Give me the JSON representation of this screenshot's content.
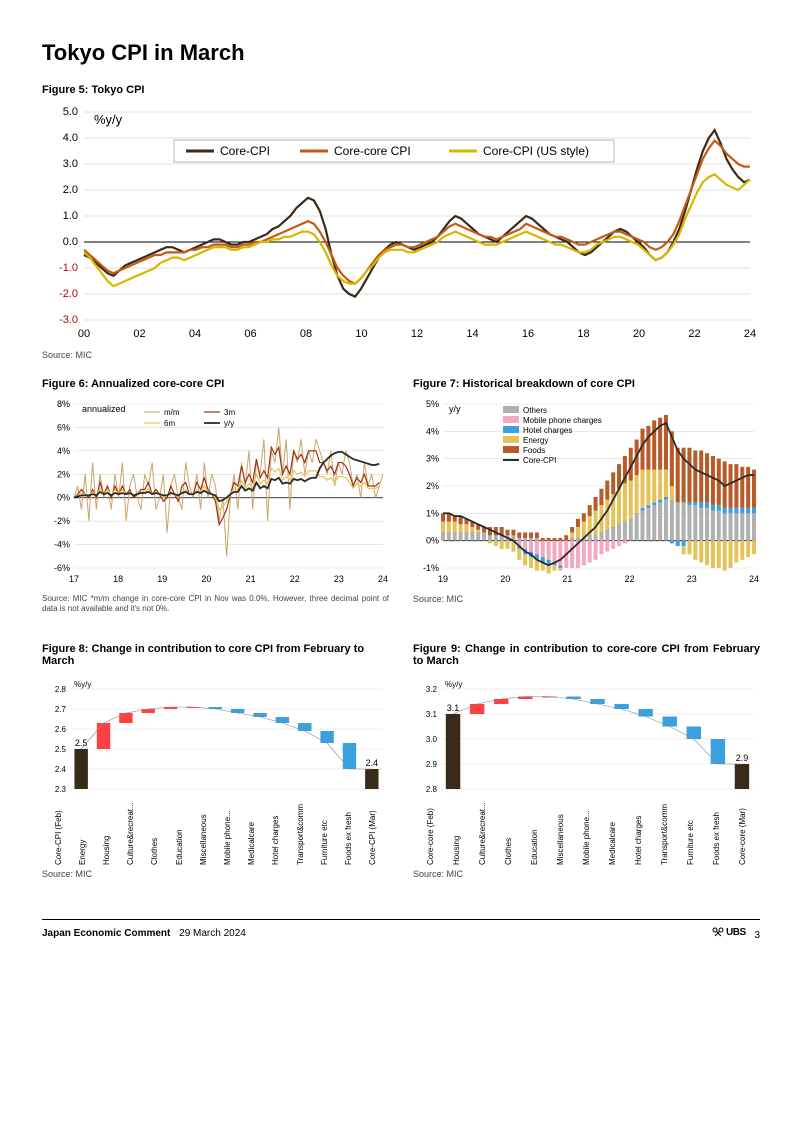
{
  "page": {
    "title": "Tokyo CPI in March",
    "footer_series": "Japan Economic Comment",
    "footer_date": "29 March 2024",
    "brand": "UBS",
    "page_number": "3"
  },
  "fig5": {
    "title": "Figure 5: Tokyo CPI",
    "ylabel": "%y/y",
    "source": "Source: MIC",
    "type": "line",
    "x_years": [
      0,
      2,
      4,
      6,
      8,
      10,
      12,
      14,
      16,
      18,
      20,
      22,
      24
    ],
    "x_labels": [
      "00",
      "02",
      "04",
      "06",
      "08",
      "10",
      "12",
      "14",
      "16",
      "18",
      "20",
      "22",
      "24"
    ],
    "ylim": [
      -3.0,
      5.0
    ],
    "ytick_step": 1.0,
    "neg_color": "#c00000",
    "pos_color": "#000000",
    "grid_color": "#d9d9d9",
    "series": [
      {
        "name": "Core-CPI",
        "color": "#3a2a1a",
        "width": 2.2,
        "vals": [
          -0.5,
          -0.6,
          -0.8,
          -1.0,
          -1.2,
          -1.3,
          -1.1,
          -0.9,
          -0.8,
          -0.7,
          -0.6,
          -0.5,
          -0.4,
          -0.3,
          -0.2,
          -0.2,
          -0.3,
          -0.4,
          -0.3,
          -0.2,
          -0.1,
          0.0,
          0.1,
          0.1,
          0.0,
          -0.1,
          -0.1,
          0.0,
          0.0,
          0.1,
          0.2,
          0.3,
          0.5,
          0.6,
          0.8,
          1.0,
          1.3,
          1.5,
          1.7,
          1.6,
          1.2,
          0.5,
          -0.5,
          -1.3,
          -1.8,
          -2.0,
          -2.1,
          -1.8,
          -1.4,
          -1.0,
          -0.6,
          -0.3,
          -0.1,
          0.0,
          -0.1,
          -0.2,
          -0.3,
          -0.2,
          -0.1,
          0.0,
          0.2,
          0.5,
          0.8,
          1.0,
          0.9,
          0.7,
          0.5,
          0.3,
          0.2,
          0.1,
          0.0,
          0.2,
          0.4,
          0.6,
          0.8,
          1.0,
          0.9,
          0.7,
          0.5,
          0.3,
          0.2,
          0.1,
          0.0,
          -0.2,
          -0.4,
          -0.5,
          -0.4,
          -0.2,
          0.0,
          0.2,
          0.4,
          0.5,
          0.4,
          0.2,
          0.0,
          -0.2,
          -0.5,
          -0.7,
          -0.6,
          -0.4,
          0.0,
          0.5,
          1.2,
          2.0,
          2.8,
          3.5,
          4.0,
          4.3,
          3.8,
          3.2,
          2.8,
          2.5,
          2.3,
          2.4
        ]
      },
      {
        "name": "Core-core CPI",
        "color": "#c55a11",
        "width": 2.2,
        "vals": [
          -0.3,
          -0.5,
          -0.7,
          -0.9,
          -1.1,
          -1.2,
          -1.1,
          -1.0,
          -0.9,
          -0.8,
          -0.7,
          -0.6,
          -0.5,
          -0.5,
          -0.4,
          -0.4,
          -0.4,
          -0.4,
          -0.3,
          -0.3,
          -0.2,
          -0.2,
          -0.1,
          -0.1,
          -0.1,
          -0.2,
          -0.2,
          -0.1,
          -0.1,
          0.0,
          0.0,
          0.1,
          0.2,
          0.3,
          0.4,
          0.5,
          0.6,
          0.7,
          0.8,
          0.7,
          0.4,
          0.0,
          -0.5,
          -1.0,
          -1.3,
          -1.5,
          -1.6,
          -1.4,
          -1.1,
          -0.8,
          -0.5,
          -0.3,
          -0.2,
          -0.1,
          -0.1,
          -0.2,
          -0.2,
          -0.1,
          0.0,
          0.1,
          0.2,
          0.4,
          0.6,
          0.7,
          0.6,
          0.5,
          0.4,
          0.3,
          0.2,
          0.2,
          0.1,
          0.2,
          0.3,
          0.4,
          0.5,
          0.7,
          0.6,
          0.5,
          0.4,
          0.3,
          0.2,
          0.2,
          0.1,
          0.0,
          -0.1,
          -0.1,
          0.0,
          0.1,
          0.2,
          0.3,
          0.4,
          0.4,
          0.3,
          0.2,
          0.1,
          0.0,
          -0.2,
          -0.3,
          -0.2,
          0.0,
          0.3,
          0.8,
          1.4,
          2.0,
          2.6,
          3.2,
          3.6,
          3.9,
          3.7,
          3.4,
          3.2,
          3.0,
          2.9,
          2.9
        ]
      },
      {
        "name": "Core-CPI (US style)",
        "color": "#d4b800",
        "width": 2.2,
        "vals": [
          -0.4,
          -0.6,
          -0.9,
          -1.2,
          -1.5,
          -1.7,
          -1.6,
          -1.5,
          -1.4,
          -1.3,
          -1.2,
          -1.1,
          -1.0,
          -0.8,
          -0.7,
          -0.6,
          -0.6,
          -0.7,
          -0.6,
          -0.5,
          -0.4,
          -0.3,
          -0.2,
          -0.2,
          -0.2,
          -0.3,
          -0.3,
          -0.2,
          -0.2,
          -0.1,
          0.0,
          0.0,
          0.1,
          0.1,
          0.2,
          0.2,
          0.3,
          0.4,
          0.4,
          0.3,
          0.0,
          -0.4,
          -0.9,
          -1.3,
          -1.5,
          -1.6,
          -1.6,
          -1.4,
          -1.1,
          -0.9,
          -0.6,
          -0.4,
          -0.3,
          -0.3,
          -0.3,
          -0.4,
          -0.4,
          -0.3,
          -0.2,
          -0.1,
          0.0,
          0.2,
          0.3,
          0.4,
          0.3,
          0.2,
          0.1,
          0.0,
          -0.1,
          -0.1,
          -0.1,
          0.0,
          0.1,
          0.2,
          0.3,
          0.4,
          0.3,
          0.2,
          0.1,
          0.0,
          -0.1,
          -0.1,
          -0.2,
          -0.3,
          -0.4,
          -0.4,
          -0.3,
          -0.1,
          0.0,
          0.1,
          0.2,
          0.2,
          0.1,
          0.0,
          -0.1,
          -0.3,
          -0.5,
          -0.7,
          -0.6,
          -0.4,
          -0.1,
          0.3,
          0.9,
          1.4,
          1.9,
          2.3,
          2.5,
          2.6,
          2.4,
          2.2,
          2.1,
          2.0,
          2.2,
          2.4
        ]
      }
    ]
  },
  "fig6": {
    "title": "Figure 6: Annualized core-core CPI",
    "ylabel": "annualized",
    "source": "Source: MIC *m/m change in core-core CPI in Nov was 0.0%. However, three decimal point of data is not available and it's not 0%.",
    "type": "line",
    "x_labels": [
      "17",
      "18",
      "19",
      "20",
      "21",
      "22",
      "23",
      "24"
    ],
    "ymin": -6,
    "ymax": 8,
    "ystep": 2,
    "grid_color": "#d9d9d9",
    "series": [
      {
        "name": "m/m",
        "color": "#c9a56b",
        "width": 1,
        "vals": [
          0,
          1,
          -1,
          2,
          -2,
          3,
          -1,
          2,
          0,
          1,
          -1,
          2,
          0,
          3,
          -2,
          1,
          2,
          0,
          -1,
          2,
          1,
          3,
          -1,
          0,
          2,
          -3,
          1,
          2,
          0,
          -1,
          3,
          1,
          0,
          2,
          -1,
          3,
          0,
          2,
          1,
          -2,
          0,
          -5,
          0,
          2,
          -1,
          3,
          1,
          4,
          -1,
          3,
          2,
          5,
          -2,
          4,
          3,
          6,
          2,
          5,
          -1,
          4,
          3,
          5,
          2,
          4,
          3,
          5,
          4,
          3,
          2,
          4,
          1,
          3,
          2,
          4,
          3,
          1,
          2,
          0,
          3,
          1,
          2,
          0,
          1,
          2
        ]
      },
      {
        "name": "3m",
        "color": "#a03010",
        "width": 1.2,
        "vals": [
          0,
          0.3,
          0.7,
          0.3,
          0,
          0.7,
          0,
          1.3,
          0.3,
          1,
          0,
          1,
          0.3,
          1,
          0.3,
          0.7,
          0,
          0.3,
          0.7,
          0.7,
          1.3,
          0.3,
          0.7,
          0.3,
          -0.3,
          0,
          1,
          0.3,
          -0.3,
          1,
          1.3,
          0.3,
          0.3,
          1.3,
          0.7,
          1.7,
          0.7,
          0.3,
          -0.3,
          -2.3,
          -1.7,
          -1,
          0.3,
          1.3,
          1,
          2.7,
          1.3,
          2,
          1.3,
          3.3,
          1.7,
          2.3,
          1.7,
          4.3,
          3.7,
          4.3,
          2,
          2.7,
          2,
          4,
          3.3,
          3.7,
          3,
          4,
          4,
          4,
          3,
          3,
          2.3,
          2.7,
          2,
          3,
          3,
          2.7,
          2,
          1,
          1.7,
          1.3,
          2,
          1,
          1,
          1,
          1.3
        ]
      },
      {
        "name": "6m",
        "color": "#e5c35a",
        "width": 1.2,
        "vals": [
          0,
          0.2,
          0.4,
          0.3,
          0.2,
          0.5,
          0.2,
          0.8,
          0.3,
          0.7,
          0.2,
          0.7,
          0.3,
          0.7,
          0.3,
          0.5,
          0.2,
          0.3,
          0.5,
          0.5,
          0.8,
          0.3,
          0.5,
          0.3,
          0,
          0.2,
          0.5,
          0.3,
          0,
          0.5,
          0.7,
          0.3,
          0.3,
          0.7,
          0.5,
          1,
          0.5,
          0.3,
          0,
          -1,
          -0.8,
          -0.3,
          0.3,
          0.8,
          0.7,
          1.5,
          0.8,
          1.2,
          0.8,
          2,
          1.2,
          1.5,
          1.2,
          2.5,
          2.2,
          2.5,
          1.5,
          1.8,
          1.5,
          2.3,
          2,
          2.2,
          1.8,
          2.3,
          2.3,
          2.3,
          1.8,
          1.8,
          1.5,
          1.7,
          1.3,
          1.8,
          1.8,
          1.7,
          1.3,
          0.8,
          1.2,
          1,
          1.3,
          0.8,
          0.8,
          0.8,
          1
        ]
      },
      {
        "name": "y/y",
        "color": "#2b2b2b",
        "width": 1.8,
        "vals": [
          0,
          0.1,
          0.2,
          0.2,
          0.2,
          0.3,
          0.2,
          0.5,
          0.3,
          0.4,
          0.2,
          0.4,
          0.3,
          0.4,
          0.3,
          0.4,
          0.2,
          0.3,
          0.4,
          0.4,
          0.5,
          0.3,
          0.4,
          0.3,
          0.2,
          0.2,
          0.4,
          0.3,
          0.2,
          0.4,
          0.5,
          0.3,
          0.3,
          0.5,
          0.4,
          0.6,
          0.4,
          0.3,
          0.2,
          -0.3,
          -0.2,
          0,
          0.3,
          0.5,
          0.5,
          1,
          0.6,
          0.8,
          0.6,
          1.3,
          0.8,
          1,
          0.8,
          1.6,
          1.5,
          1.7,
          1.2,
          1.3,
          1.2,
          1.6,
          1.5,
          1.6,
          1.4,
          1.6,
          1.7,
          1.7,
          2.5,
          3,
          3.3,
          3.6,
          3.8,
          3.9,
          3.9,
          3.7,
          3.5,
          3.3,
          3.2,
          3.1,
          3.0,
          2.9,
          2.8,
          2.8,
          2.9
        ]
      }
    ]
  },
  "fig7": {
    "title": "Figure 7: Historical breakdown of core CPI",
    "ylabel": "y/y",
    "source": "Source: MIC",
    "type": "stacked_bar_line",
    "x_labels": [
      "19",
      "20",
      "21",
      "22",
      "23",
      "24"
    ],
    "ymin": -1,
    "ymax": 5,
    "ystep": 1,
    "grid_color": "#d9d9d9",
    "line": {
      "name": "Core-CPI",
      "color": "#2b2b2b",
      "width": 1.8,
      "vals": [
        1.0,
        1.0,
        0.9,
        0.9,
        0.8,
        0.7,
        0.6,
        0.5,
        0.4,
        0.3,
        0.2,
        0.1,
        0.0,
        -0.2,
        -0.4,
        -0.5,
        -0.7,
        -0.8,
        -0.9,
        -0.8,
        -0.7,
        -0.5,
        -0.3,
        -0.1,
        0.1,
        0.3,
        0.5,
        0.8,
        1.1,
        1.5,
        1.9,
        2.3,
        2.7,
        3.1,
        3.5,
        3.8,
        4.0,
        4.2,
        4.3,
        3.8,
        3.3,
        3.0,
        2.8,
        2.6,
        2.5,
        2.4,
        2.3,
        2.2,
        2.0,
        2.1,
        2.2,
        2.3,
        2.4,
        2.4
      ]
    },
    "stacks": [
      {
        "name": "Others",
        "color": "#b0b0b0",
        "vals": [
          0.3,
          0.3,
          0.3,
          0.3,
          0.3,
          0.3,
          0.3,
          0.3,
          0.2,
          0.2,
          0.2,
          0.2,
          0.2,
          0.1,
          0.1,
          0.1,
          0.1,
          0.0,
          0.0,
          0.0,
          0.0,
          0.0,
          0.1,
          0.1,
          0.1,
          0.2,
          0.2,
          0.3,
          0.4,
          0.5,
          0.6,
          0.7,
          0.8,
          1.0,
          1.1,
          1.2,
          1.3,
          1.4,
          1.5,
          1.5,
          1.4,
          1.4,
          1.3,
          1.3,
          1.2,
          1.2,
          1.1,
          1.1,
          1.0,
          1.0,
          1.0,
          1.0,
          1.0,
          1.0
        ]
      },
      {
        "name": "Mobile phone charges",
        "color": "#f5a9c0",
        "vals": [
          0.0,
          0.0,
          0.0,
          0.0,
          0.0,
          0.0,
          0.0,
          0.0,
          0.0,
          0.0,
          0.0,
          0.0,
          0.0,
          -0.2,
          -0.3,
          -0.4,
          -0.5,
          -0.6,
          -0.7,
          -0.8,
          -0.9,
          -1.0,
          -1.0,
          -1.0,
          -0.9,
          -0.8,
          -0.7,
          -0.5,
          -0.4,
          -0.3,
          -0.2,
          -0.1,
          0.0,
          0.0,
          0.0,
          0.0,
          0.0,
          0.0,
          0.0,
          0.0,
          0.0,
          0.0,
          0.0,
          0.0,
          0.0,
          0.0,
          0.0,
          0.0,
          0.0,
          0.0,
          0.0,
          0.0,
          0.0,
          0.0
        ]
      },
      {
        "name": "Hotel charges",
        "color": "#3aa0e0",
        "vals": [
          0.0,
          0.0,
          0.0,
          0.0,
          0.0,
          0.0,
          0.0,
          0.0,
          0.0,
          0.0,
          0.0,
          0.0,
          0.0,
          -0.1,
          -0.2,
          -0.2,
          -0.2,
          -0.2,
          -0.2,
          -0.1,
          -0.1,
          0.0,
          0.0,
          0.0,
          0.0,
          0.0,
          0.0,
          0.0,
          0.0,
          0.0,
          0.0,
          0.0,
          0.0,
          0.0,
          0.1,
          0.1,
          0.1,
          0.1,
          0.1,
          -0.1,
          -0.2,
          -0.2,
          0.1,
          0.1,
          0.2,
          0.2,
          0.2,
          0.2,
          0.2,
          0.2,
          0.2,
          0.2,
          0.2,
          0.2
        ]
      },
      {
        "name": "Energy",
        "color": "#e5c35a",
        "vals": [
          0.4,
          0.4,
          0.4,
          0.3,
          0.3,
          0.2,
          0.1,
          0.0,
          -0.1,
          -0.2,
          -0.3,
          -0.3,
          -0.4,
          -0.4,
          -0.4,
          -0.4,
          -0.4,
          -0.3,
          -0.3,
          -0.2,
          -0.1,
          0.0,
          0.2,
          0.4,
          0.6,
          0.7,
          0.9,
          1.0,
          1.1,
          1.2,
          1.3,
          1.4,
          1.4,
          1.4,
          1.4,
          1.3,
          1.2,
          1.1,
          1.0,
          0.5,
          0.0,
          -0.3,
          -0.5,
          -0.7,
          -0.8,
          -0.9,
          -1.0,
          -1.0,
          -1.1,
          -1.0,
          -0.8,
          -0.7,
          -0.6,
          -0.5
        ]
      },
      {
        "name": "Foods",
        "color": "#b85b2a",
        "vals": [
          0.3,
          0.3,
          0.2,
          0.3,
          0.2,
          0.2,
          0.2,
          0.2,
          0.3,
          0.3,
          0.3,
          0.2,
          0.2,
          0.2,
          0.2,
          0.2,
          0.2,
          0.1,
          0.1,
          0.1,
          0.1,
          0.2,
          0.2,
          0.3,
          0.3,
          0.4,
          0.5,
          0.6,
          0.7,
          0.8,
          0.9,
          1.0,
          1.2,
          1.3,
          1.5,
          1.6,
          1.8,
          1.9,
          2.0,
          2.0,
          2.0,
          2.0,
          2.0,
          1.9,
          1.9,
          1.8,
          1.8,
          1.7,
          1.7,
          1.6,
          1.6,
          1.5,
          1.5,
          1.4
        ]
      }
    ]
  },
  "fig8": {
    "title": "Figure 8: Change in contribution to core CPI from February to March",
    "ylabel": "%y/y",
    "source": "Source: MIC",
    "type": "waterfall",
    "ymin": 2.3,
    "ymax": 2.8,
    "ystep": 0.1,
    "start_label": "2.5",
    "end_label": "2.4",
    "colors": {
      "total": "#3a2a1a",
      "up": "#ff4040",
      "down": "#3aa0e0",
      "guide": "#888888"
    },
    "categories": [
      "Core-CPI (Feb)",
      "Energy",
      "Housing",
      "Culture&recreat...",
      "Clothes",
      "Education",
      "Miscellaneous",
      "Mobile phone...",
      "Medicalcare",
      "Hotel charges",
      "Transport&comm",
      "Furniture etc",
      "Foods ex fresh",
      "Core-CPI (Mar)"
    ],
    "values": [
      2.5,
      0.13,
      0.05,
      0.02,
      0.01,
      0.0,
      -0.01,
      -0.02,
      -0.02,
      -0.03,
      -0.04,
      -0.06,
      -0.13,
      2.4
    ]
  },
  "fig9": {
    "title": "Figure 9: Change in contribution to core-core CPI from February to March",
    "ylabel": "%y/y",
    "source": "Source: MIC",
    "type": "waterfall",
    "ymin": 2.8,
    "ymax": 3.2,
    "ystep": 0.1,
    "start_label": "3.1",
    "end_label": "2.9",
    "colors": {
      "total": "#3a2a1a",
      "up": "#ff4040",
      "down": "#3aa0e0",
      "guide": "#888888"
    },
    "categories": [
      "Core-core (Feb)",
      "Housing",
      "Culture&recreat...",
      "Clothes",
      "Education",
      "Miscellaneous",
      "Mobile phone...",
      "Medicalcare",
      "Hotel charges",
      "Transport&comm",
      "Furniture etc",
      "Foods ex fresh",
      "Core-core (Mar)"
    ],
    "values": [
      3.1,
      0.04,
      0.02,
      0.01,
      0.0,
      -0.01,
      -0.02,
      -0.02,
      -0.03,
      -0.04,
      -0.05,
      -0.1,
      2.9
    ]
  }
}
